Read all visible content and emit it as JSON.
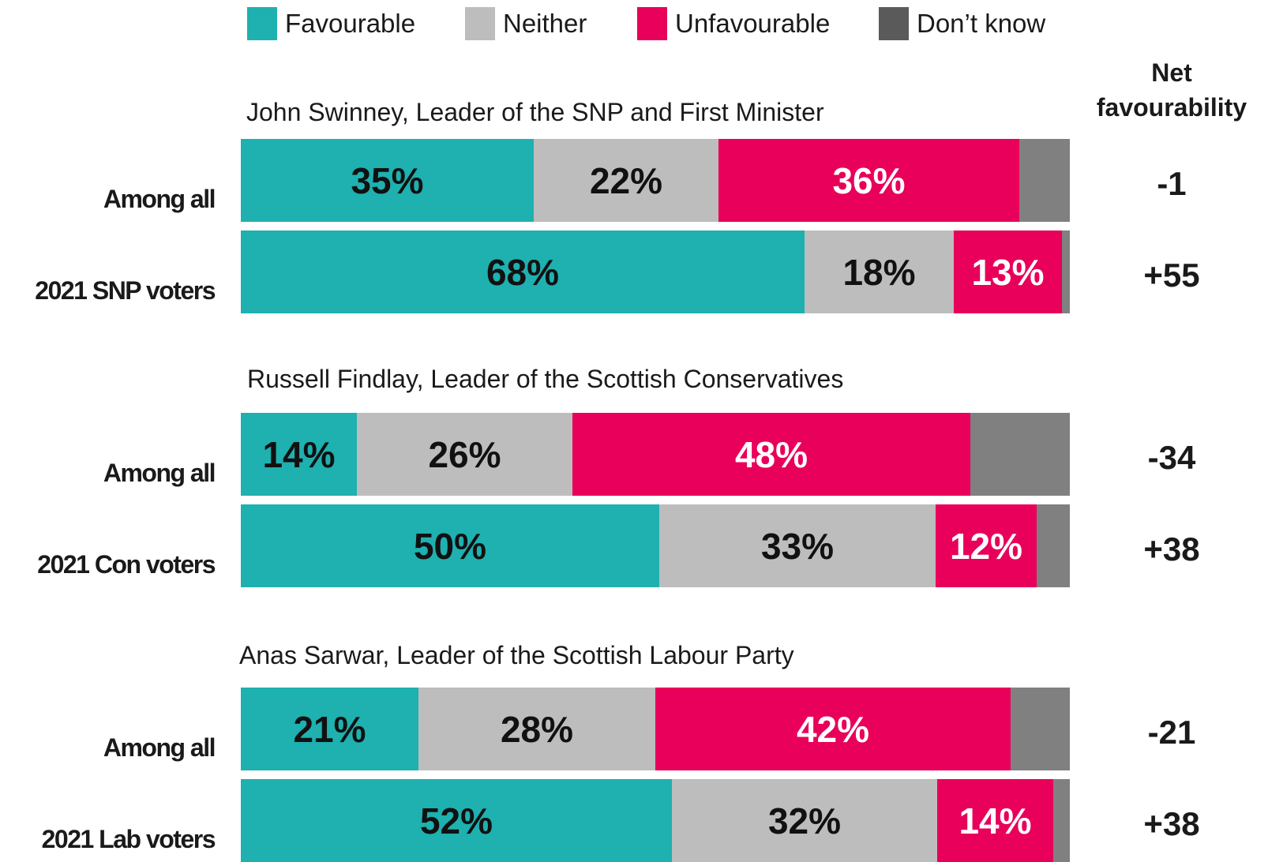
{
  "colors": {
    "favourable": "#1fb0b0",
    "neither": "#bdbdbd",
    "unfavourable": "#e8005a",
    "dont_know": "#808080",
    "legend_dont_know": "#5a5a5a"
  },
  "legend": {
    "favourable": "Favourable",
    "neither": "Neither",
    "unfavourable": "Unfavourable",
    "dont_know": "Don’t know"
  },
  "net_header": {
    "line1": "Net",
    "line2": "favourability"
  },
  "chart_data": {
    "type": "bar",
    "orientation": "horizontal",
    "stacked": true,
    "xlim": [
      0,
      100
    ],
    "series_names": [
      "Favourable",
      "Neither",
      "Unfavourable",
      "Don’t know"
    ],
    "groups": [
      {
        "title": "John Swinney, Leader of the SNP and First Minister",
        "rows": [
          {
            "label": "Among all",
            "values": [
              35,
              22,
              36,
              6
            ],
            "labels": [
              "35%",
              "22%",
              "36%",
              ""
            ],
            "net": "-1"
          },
          {
            "label": "2021 SNP voters",
            "values": [
              68,
              18,
              13,
              1
            ],
            "labels": [
              "68%",
              "18%",
              "13%",
              ""
            ],
            "net": "+55"
          }
        ]
      },
      {
        "title": "Russell Findlay, Leader of the Scottish Conservatives",
        "rows": [
          {
            "label": "Among all",
            "values": [
              14,
              26,
              48,
              12
            ],
            "labels": [
              "14%",
              "26%",
              "48%",
              ""
            ],
            "net": "-34"
          },
          {
            "label": "2021 Con voters",
            "values": [
              50,
              33,
              12,
              4
            ],
            "labels": [
              "50%",
              "33%",
              "12%",
              ""
            ],
            "net": "+38"
          }
        ]
      },
      {
        "title": "Anas Sarwar, Leader of the Scottish Labour Party",
        "rows": [
          {
            "label": "Among all",
            "values": [
              21,
              28,
              42,
              7
            ],
            "labels": [
              "21%",
              "28%",
              "42%",
              ""
            ],
            "net": "-21"
          },
          {
            "label": "2021 Lab  voters",
            "values": [
              52,
              32,
              14,
              2
            ],
            "labels": [
              "52%",
              "32%",
              "14%",
              ""
            ],
            "net": "+38"
          }
        ]
      }
    ]
  }
}
